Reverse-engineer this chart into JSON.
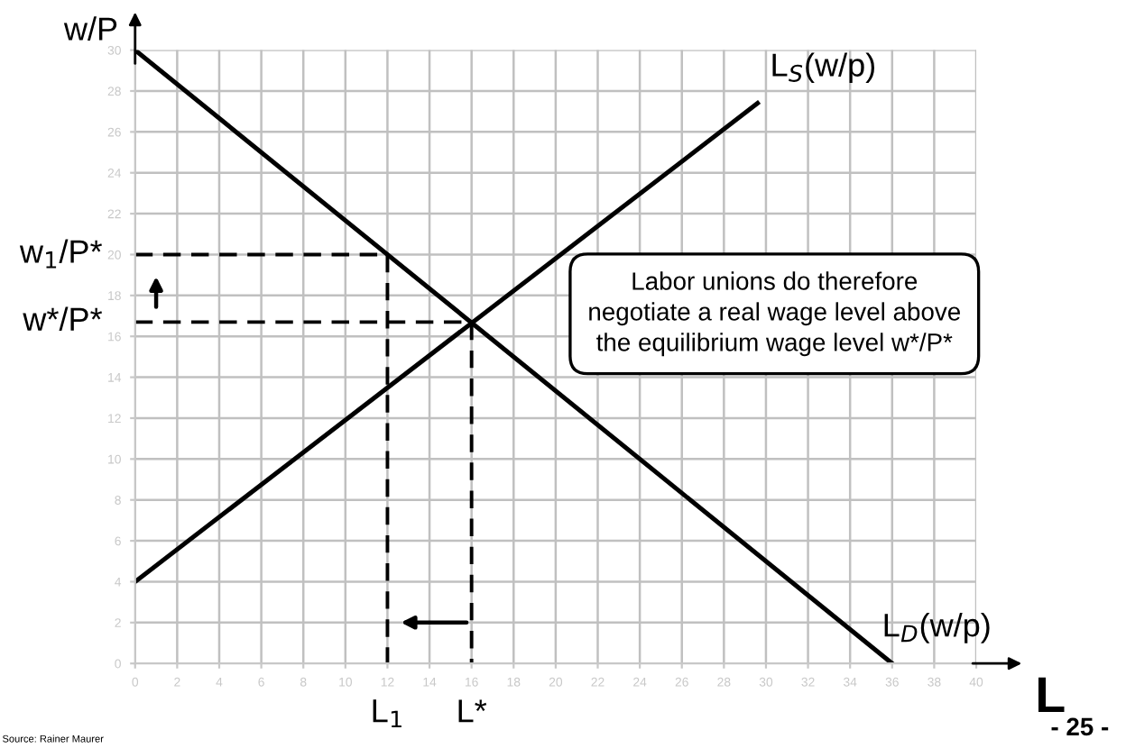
{
  "chart_data": {
    "type": "line",
    "xlabel": "L",
    "ylabel": "w/P",
    "xlim": [
      0,
      40
    ],
    "ylim": [
      0,
      30
    ],
    "xticks": [
      0,
      2,
      4,
      6,
      8,
      10,
      12,
      14,
      16,
      18,
      20,
      22,
      24,
      26,
      28,
      30,
      32,
      34,
      36,
      38,
      40
    ],
    "yticks": [
      0,
      2,
      4,
      6,
      8,
      10,
      12,
      14,
      16,
      18,
      20,
      22,
      24,
      26,
      28,
      30
    ],
    "grid": true,
    "series": [
      {
        "name": "L$_{S}$(w/p)",
        "color": "#000000",
        "x": [
          0,
          29.6
        ],
        "values": [
          4,
          27.4
        ],
        "line_style": "solid"
      },
      {
        "name": "L$_{D}$(w/p)",
        "color": "#000000",
        "x": [
          0,
          36
        ],
        "values": [
          30,
          0
        ],
        "line_style": "solid"
      },
      {
        "color": "#000000",
        "x": [
          0,
          12,
          12
        ],
        "values": [
          20,
          20,
          0
        ],
        "line_style": "dashed"
      },
      {
        "color": "#000000",
        "x": [
          0,
          16,
          16
        ],
        "values": [
          16.7,
          16.7,
          0
        ],
        "line_style": "dashed"
      }
    ],
    "annotations": [
      {
        "text": "w$_{1}$/P*",
        "x": 0,
        "y": 20
      },
      {
        "text": "w*/P*",
        "x": 0,
        "y": 16.7
      },
      {
        "text": "L$_{1}$",
        "x": 12,
        "y": 0
      },
      {
        "text": "L*",
        "x": 16,
        "y": 0
      },
      "Labor unions do therefore\nnegotiate a real wage level above\nthe equilibrium wage level w*/P*",
      "Source: Rainer Maurer",
      "- 25 -"
    ]
  }
}
